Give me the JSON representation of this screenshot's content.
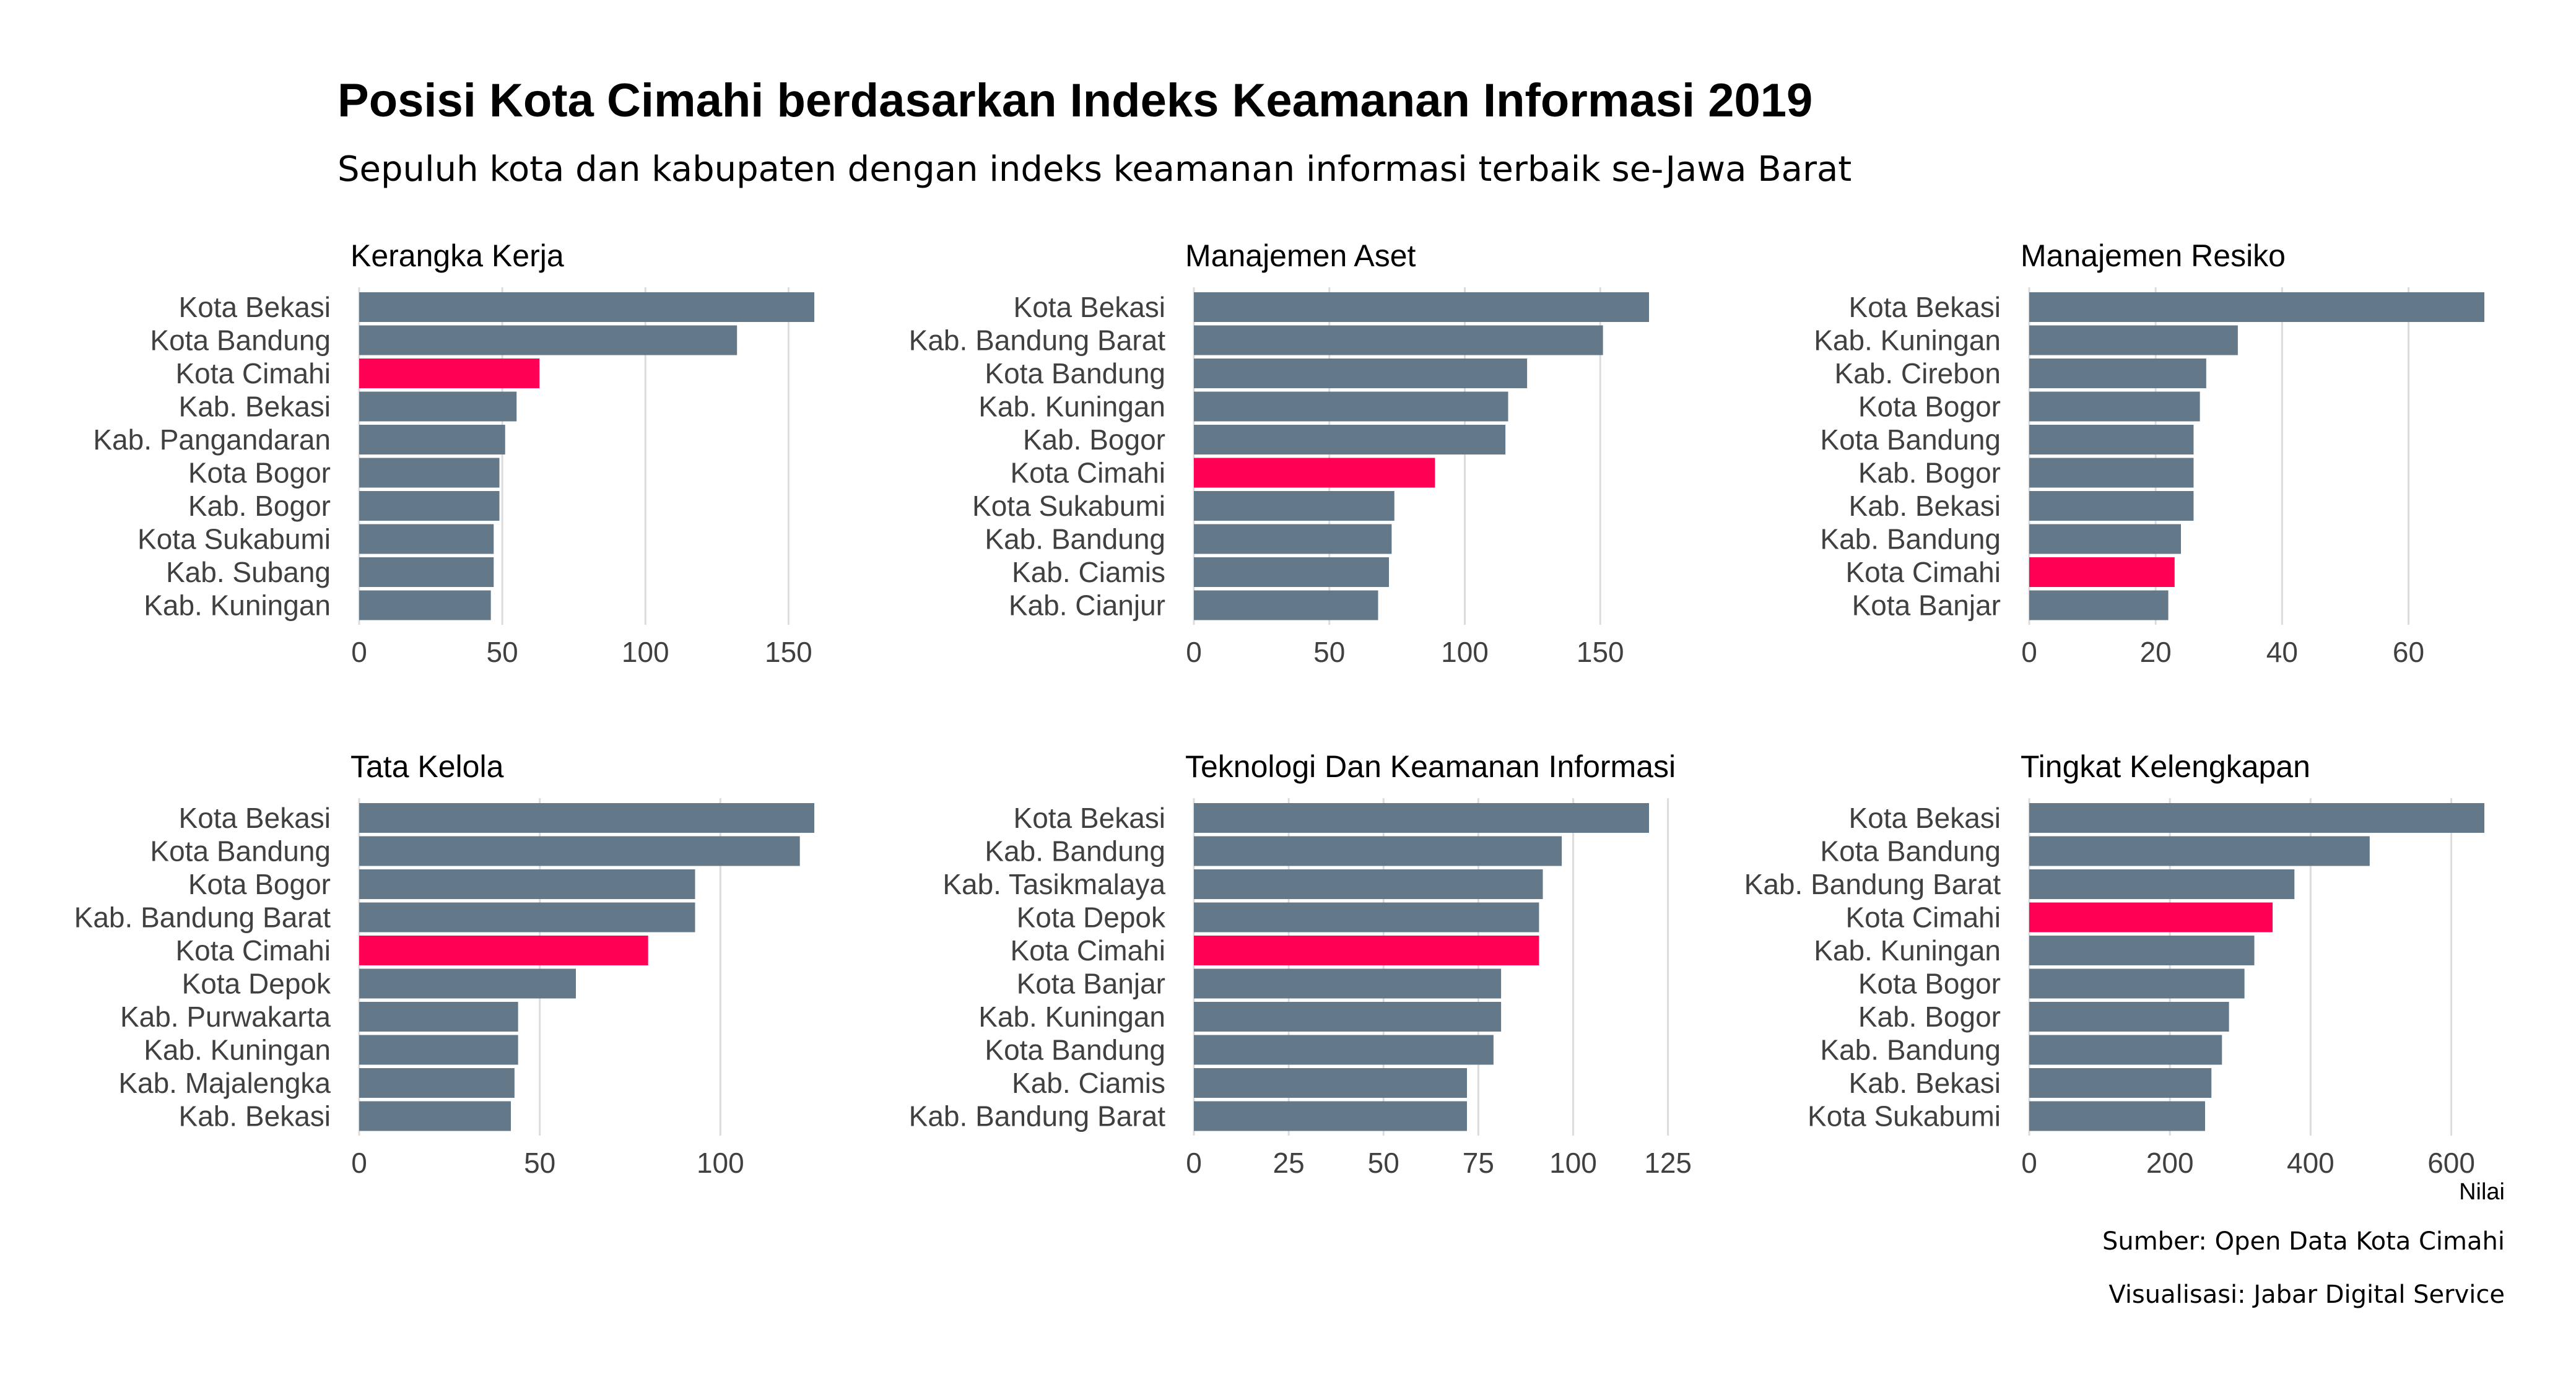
{
  "title": "Posisi Kota Cimahi berdasarkan Indeks Keamanan Informasi 2019",
  "subtitle": "Sepuluh kota dan kabupaten dengan indeks keamanan informasi terbaik se-Jawa Barat",
  "xlabel": "Nilai",
  "caption": {
    "source": "Sumber: Open Data Kota Cimahi",
    "visualization": "Visualisasi: Jabar Digital Service"
  },
  "colors": {
    "default_bar": "#637888",
    "highlight_bar": "#ff0055",
    "grid": "#dcdcdc"
  },
  "highlight_category": "Kota Cimahi",
  "chart_data": [
    {
      "type": "bar",
      "orientation": "horizontal",
      "title": "Kerangka Kerja",
      "categories": [
        "Kota Bekasi",
        "Kota Bandung",
        "Kota Cimahi",
        "Kab. Bekasi",
        "Kab. Pangandaran",
        "Kota Bogor",
        "Kab. Bogor",
        "Kota Sukabumi",
        "Kab. Subang",
        "Kab. Kuningan"
      ],
      "values": [
        159,
        132,
        63,
        55,
        51,
        49,
        49,
        47,
        47,
        46
      ],
      "xlim": [
        0,
        159
      ],
      "ticks": [
        0,
        50,
        100,
        150
      ],
      "grid": true
    },
    {
      "type": "bar",
      "orientation": "horizontal",
      "title": "Manajemen Aset",
      "categories": [
        "Kota Bekasi",
        "Kab. Bandung Barat",
        "Kota Bandung",
        "Kab. Kuningan",
        "Kab. Bogor",
        "Kota Cimahi",
        "Kota Sukabumi",
        "Kab. Bandung",
        "Kab. Ciamis",
        "Kab. Cianjur"
      ],
      "values": [
        168,
        151,
        123,
        116,
        115,
        89,
        74,
        73,
        72,
        68
      ],
      "xlim": [
        0,
        168
      ],
      "ticks": [
        0,
        50,
        100,
        150
      ],
      "grid": true
    },
    {
      "type": "bar",
      "orientation": "horizontal",
      "title": "Manajemen Resiko",
      "categories": [
        "Kota Bekasi",
        "Kab. Kuningan",
        "Kab. Cirebon",
        "Kota Bogor",
        "Kota Bandung",
        "Kab. Bogor",
        "Kab. Bekasi",
        "Kab. Bandung",
        "Kota Cimahi",
        "Kota Banjar"
      ],
      "values": [
        72,
        33,
        28,
        27,
        26,
        26,
        26,
        24,
        23,
        22
      ],
      "xlim": [
        0,
        72
      ],
      "ticks": [
        0,
        20,
        40,
        60
      ],
      "grid": true
    },
    {
      "type": "bar",
      "orientation": "horizontal",
      "title": "Tata Kelola",
      "categories": [
        "Kota Bekasi",
        "Kota Bandung",
        "Kota Bogor",
        "Kab. Bandung Barat",
        "Kota Cimahi",
        "Kota Depok",
        "Kab. Purwakarta",
        "Kab. Kuningan",
        "Kab. Majalengka",
        "Kab. Bekasi"
      ],
      "values": [
        126,
        122,
        93,
        93,
        80,
        60,
        44,
        44,
        43,
        42
      ],
      "xlim": [
        0,
        126
      ],
      "ticks": [
        0,
        50,
        100
      ],
      "grid": true
    },
    {
      "type": "bar",
      "orientation": "horizontal",
      "title": "Teknologi Dan Keamanan Informasi",
      "categories": [
        "Kota Bekasi",
        "Kab. Bandung",
        "Kab. Tasikmalaya",
        "Kota Depok",
        "Kota Cimahi",
        "Kota Banjar",
        "Kab. Kuningan",
        "Kota Bandung",
        "Kab. Ciamis",
        "Kab. Bandung Barat"
      ],
      "values": [
        120,
        97,
        92,
        91,
        91,
        81,
        81,
        79,
        72,
        72
      ],
      "xlim": [
        0,
        120
      ],
      "ticks": [
        0,
        25,
        50,
        75,
        100,
        125
      ],
      "grid": true
    },
    {
      "type": "bar",
      "orientation": "horizontal",
      "title": "Tingkat Kelengkapan",
      "categories": [
        "Kota Bekasi",
        "Kota Bandung",
        "Kab. Bandung Barat",
        "Kota Cimahi",
        "Kab. Kuningan",
        "Kota Bogor",
        "Kab. Bogor",
        "Kab. Bandung",
        "Kab. Bekasi",
        "Kota Sukabumi"
      ],
      "values": [
        647,
        484,
        377,
        346,
        320,
        306,
        284,
        274,
        259,
        250
      ],
      "xlim": [
        0,
        647
      ],
      "ticks": [
        0,
        200,
        400,
        600
      ],
      "grid": true
    }
  ]
}
